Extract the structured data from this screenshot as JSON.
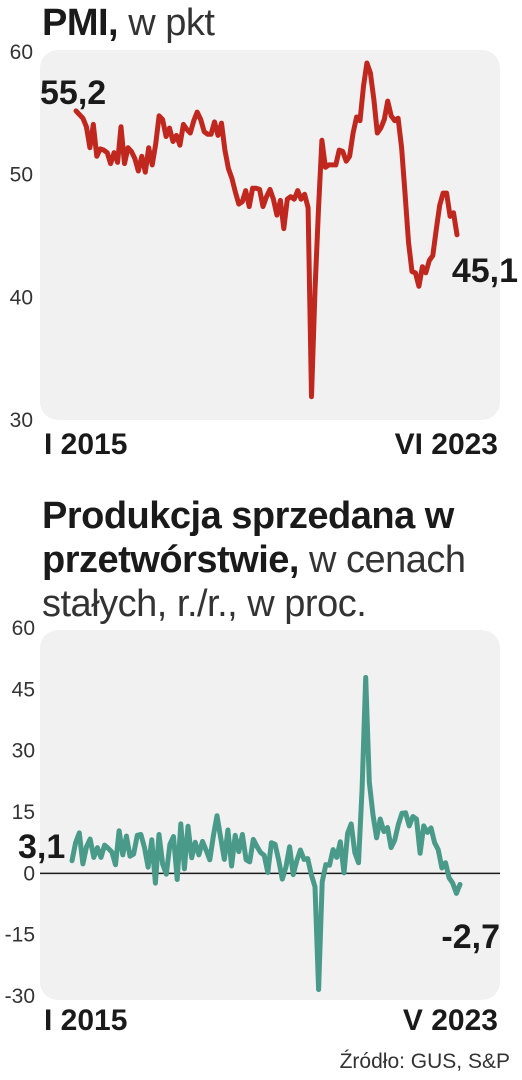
{
  "chart_data": [
    {
      "type": "line",
      "title": "PMI,",
      "subtitle": "w pkt",
      "ylim": [
        30,
        60
      ],
      "y_ticks": [
        "60",
        "50",
        "40",
        "30"
      ],
      "x_start_label": "I 2015",
      "x_end_label": "VI 2023",
      "start_value_label": "55,2",
      "end_value_label": "45,1",
      "line_color": "#c0281f",
      "series": [
        {
          "values": [
            55.2,
            54.9,
            54.6,
            53.9,
            52.2,
            54.1,
            51.5,
            52.1,
            52.0,
            51.8,
            50.9,
            51.8,
            51.0,
            53.9,
            50.9,
            52.2,
            51.9,
            51.3,
            50.3,
            51.5,
            50.2,
            52.2,
            50.8,
            52.5,
            54.8,
            54.5,
            53.1,
            53.8,
            52.7,
            53.2,
            52.4,
            54.1,
            53.7,
            53.4,
            54.4,
            55.1,
            54.5,
            53.5,
            53.3,
            53.3,
            54.3,
            53.2,
            54.2,
            52.0,
            50.5,
            49.7,
            48.6,
            47.6,
            47.8,
            48.7,
            47.4,
            48.9,
            48.9,
            48.8,
            47.4,
            48.2,
            48.8,
            48.0,
            46.7,
            47.9,
            45.6,
            48.0,
            48.2,
            48.0,
            48.7,
            48.0,
            48.4,
            47.3,
            31.9,
            40.6,
            47.2,
            52.8,
            50.6,
            50.8,
            50.8,
            50.8,
            52.0,
            51.9,
            51.1,
            51.5,
            53.4,
            54.7,
            54.4,
            57.2,
            59.1,
            58.3,
            56.1,
            53.4,
            53.8,
            54.5,
            56.0,
            54.8,
            54.4,
            54.6,
            52.2,
            48.5,
            44.5,
            42.1,
            42.0,
            40.9,
            42.5,
            42.0,
            43.0,
            43.4,
            45.5,
            47.5,
            48.5,
            48.5,
            46.6,
            46.9,
            45.1
          ]
        }
      ]
    },
    {
      "type": "line",
      "title": "Produkcja sprzedana w przetwórstwie,",
      "subtitle": "w cenach stałych, r./r., w proc.",
      "ylim": [
        -30,
        60
      ],
      "y_ticks": [
        "60",
        "45",
        "30",
        "15",
        "0",
        "-15",
        "-30"
      ],
      "x_start_label": "I 2015",
      "x_end_label": "V 2023",
      "start_value_label": "3,1",
      "end_value_label": "-2,7",
      "zero_line": true,
      "line_color": "#4a9a8a",
      "series": [
        {
          "values": [
            3.1,
            7.5,
            9.9,
            2.3,
            6.5,
            8.4,
            3.9,
            6.3,
            3.9,
            6.9,
            6.1,
            5.2,
            2.1,
            10.4,
            4.5,
            9.1,
            4.2,
            4.7,
            9.3,
            9.5,
            6.3,
            1.5,
            8.2,
            -2.4,
            9.5,
            2.2,
            -0.2,
            7.1,
            9.0,
            -1.5,
            12.1,
            1.1,
            11.5,
            3.8,
            7.6,
            4.5,
            7.8,
            5.6,
            3.3,
            9.2,
            14.1,
            8.7,
            3.4,
            10.6,
            1.8,
            9.3,
            5.3,
            9.5,
            3.3,
            2.8,
            8.3,
            6.6,
            5.1,
            4.4,
            0.2,
            7.5,
            7.1,
            3.2,
            -1.4,
            1.5,
            6.5,
            -0.3,
            3.1,
            5.7,
            3.4,
            3.6,
            -0.3,
            -3.3,
            -28.4,
            -2.1,
            2.1,
            2.0,
            5.8,
            3.9,
            7.7,
            0.1,
            9.8,
            12.1,
            5.1,
            2.6,
            20.7,
            47.9,
            22.3,
            14.3,
            8.7,
            13.3,
            10.2,
            11.2,
            6.3,
            8.1,
            12.0,
            14.7,
            14.8,
            11.6,
            13.9,
            13.3,
            4.9,
            11.6,
            10.0,
            11.1,
            7.5,
            5.8,
            1.3,
            2.6,
            -1.1,
            -2.4,
            -4.9,
            -2.7
          ]
        }
      ]
    }
  ],
  "source_label": "Źródło: GUS, S&P"
}
